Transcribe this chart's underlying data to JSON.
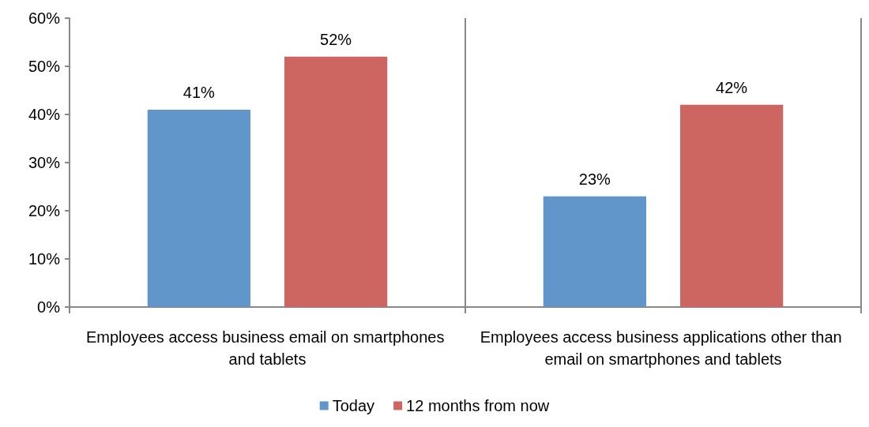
{
  "chart_data": {
    "type": "bar",
    "categories": [
      "Employees access business email on smartphones and tablets",
      "Employees access business applications other than email on smartphones and tablets"
    ],
    "series": [
      {
        "name": "Today",
        "color": "#6096c9",
        "values": [
          41,
          23
        ],
        "value_labels": [
          "41%",
          "23%"
        ]
      },
      {
        "name": "12 months from now",
        "color": "#cd6660",
        "values": [
          52,
          42
        ],
        "value_labels": [
          "52%",
          "42%"
        ]
      }
    ],
    "ylim": [
      0,
      60
    ],
    "yticks": [
      {
        "value": 0,
        "label": "0%"
      },
      {
        "value": 10,
        "label": "10%"
      },
      {
        "value": 20,
        "label": "20%"
      },
      {
        "value": 30,
        "label": "30%"
      },
      {
        "value": 40,
        "label": "40%"
      },
      {
        "value": 50,
        "label": "50%"
      },
      {
        "value": 60,
        "label": "60%"
      }
    ],
    "grid": "x",
    "legend": "bottom"
  }
}
